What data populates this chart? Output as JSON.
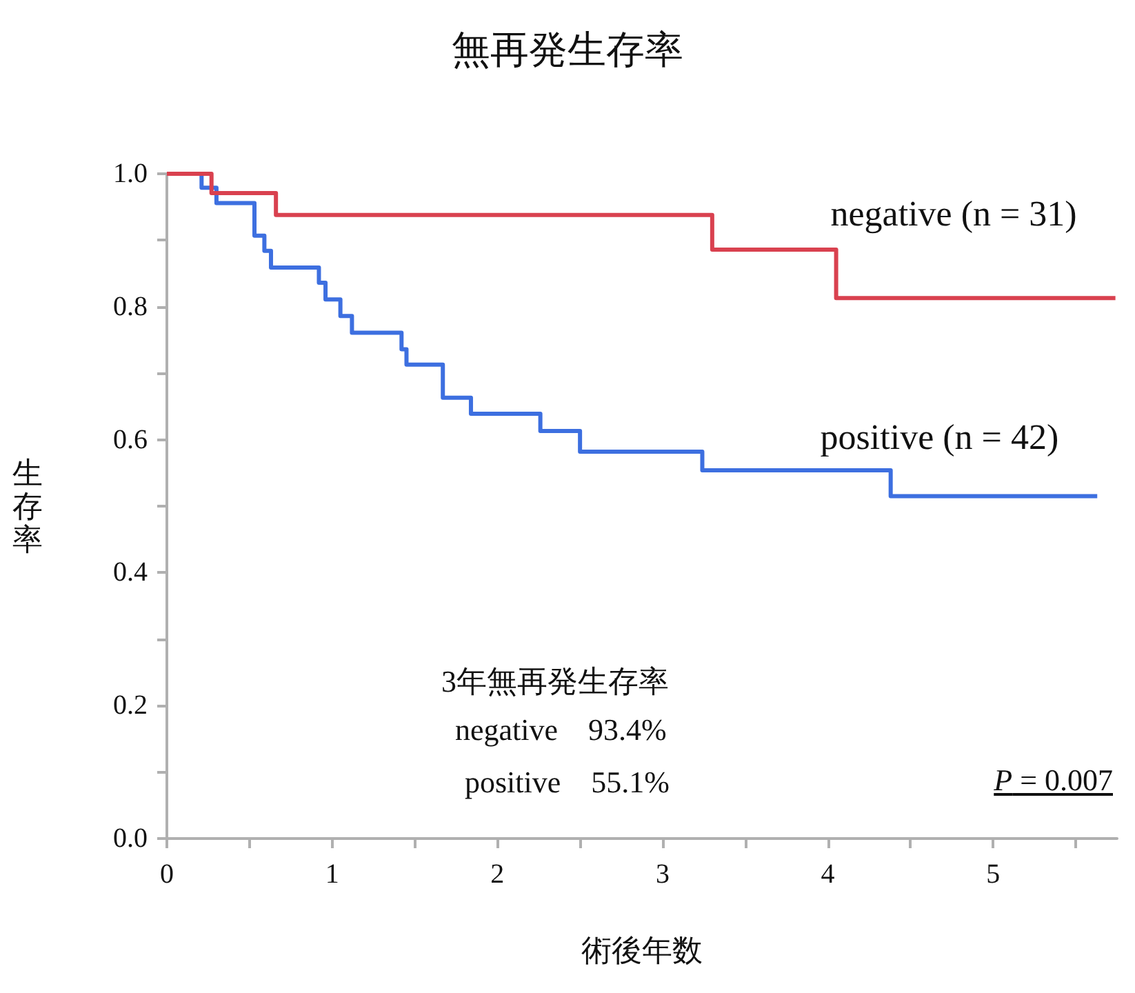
{
  "chart_data": {
    "type": "step",
    "title": "無再発生存率",
    "xlabel": "術後年数",
    "ylabel": "生存率",
    "series": [
      {
        "name": "negative (n = 31)",
        "color": "#d9414f",
        "x": [
          0,
          0.27,
          0.66,
          3.3,
          4.05,
          5.74
        ],
        "values": [
          1.0,
          0.971,
          0.938,
          0.886,
          0.813,
          0.813
        ]
      },
      {
        "name": "positive (n = 42)",
        "color": "#3d6fe0",
        "x": [
          0,
          0.21,
          0.3,
          0.53,
          0.59,
          0.63,
          0.92,
          0.96,
          1.05,
          1.12,
          1.42,
          1.45,
          1.67,
          1.84,
          2.26,
          2.5,
          3.24,
          4.38,
          5.63
        ],
        "values": [
          1.0,
          0.979,
          0.956,
          0.907,
          0.884,
          0.859,
          0.836,
          0.811,
          0.786,
          0.761,
          0.736,
          0.713,
          0.663,
          0.639,
          0.613,
          0.582,
          0.554,
          0.515,
          0.515
        ]
      }
    ],
    "xlim": [
      0,
      5.75
    ],
    "xticks": [
      0,
      {
        "value": 0.5,
        "label": null
      },
      1,
      {
        "value": 1.5,
        "label": null
      },
      2,
      {
        "value": 2.5,
        "label": null
      },
      3,
      {
        "value": 3.5,
        "label": null
      },
      4,
      {
        "value": 4.5,
        "label": null
      },
      5,
      {
        "value": 5.5,
        "label": null
      }
    ],
    "ylim": [
      0,
      1
    ],
    "yticks": [
      {
        "value": 0,
        "label": "0.0"
      },
      {
        "value": 0.1,
        "label": null
      },
      0.2,
      {
        "value": 0.3,
        "label": null
      },
      0.4,
      {
        "value": 0.5,
        "label": null
      },
      0.6,
      {
        "value": 0.7,
        "label": null
      },
      0.8,
      {
        "value": 0.9,
        "label": null
      },
      {
        "value": 1,
        "label": "1.0"
      }
    ],
    "grid": false,
    "legend": false,
    "marker": "none",
    "line_style": "solid",
    "annotations": [
      "3年無再発生存率",
      "negative　93.4%",
      "positive　55.1%",
      "P = 0.007"
    ]
  }
}
